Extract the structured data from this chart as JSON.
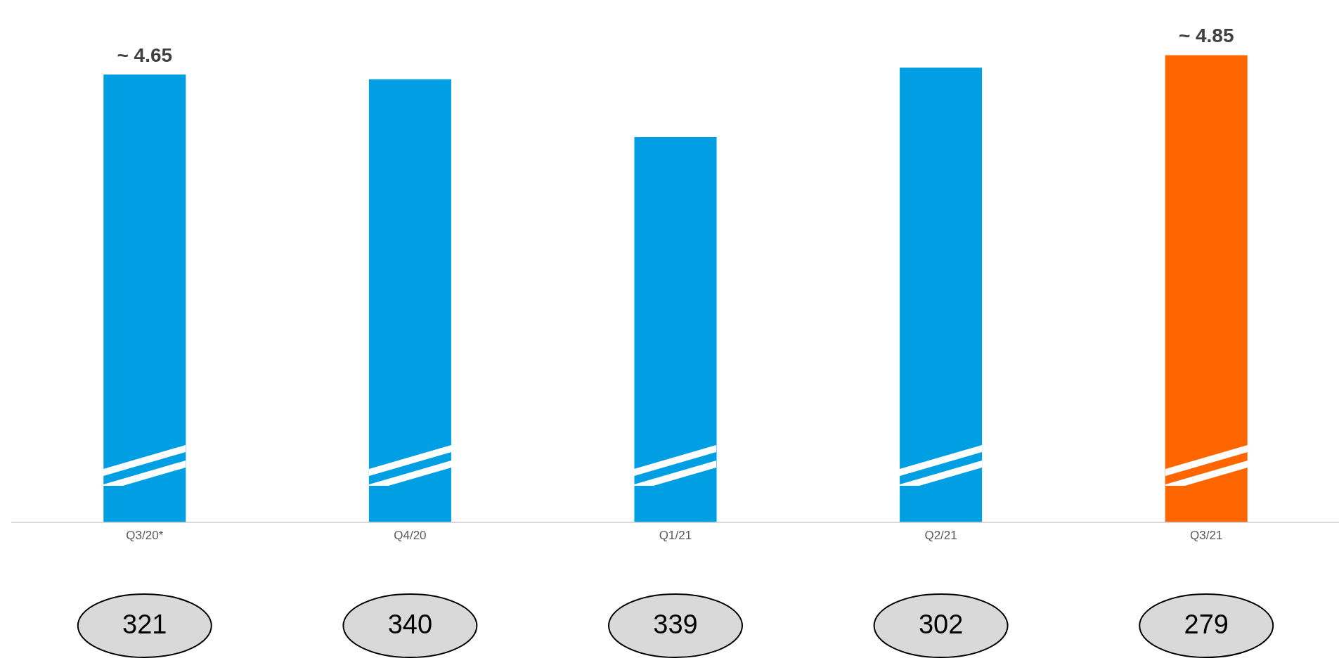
{
  "chart_data": {
    "type": "bar",
    "categories": [
      "Q3/20*",
      "Q4/20",
      "Q1/21",
      "Q2/21",
      "Q3/21"
    ],
    "values": [
      4.65,
      4.6,
      4.0,
      4.72,
      4.85
    ],
    "colors": [
      "#009fe3",
      "#009fe3",
      "#009fe3",
      "#009fe3",
      "#ff6600"
    ],
    "value_labels": [
      "~ 4.65",
      null,
      null,
      null,
      "~ 4.85"
    ],
    "tick_labels": "x",
    "annotations": [
      "321",
      "340",
      "339",
      "302",
      "279"
    ]
  }
}
